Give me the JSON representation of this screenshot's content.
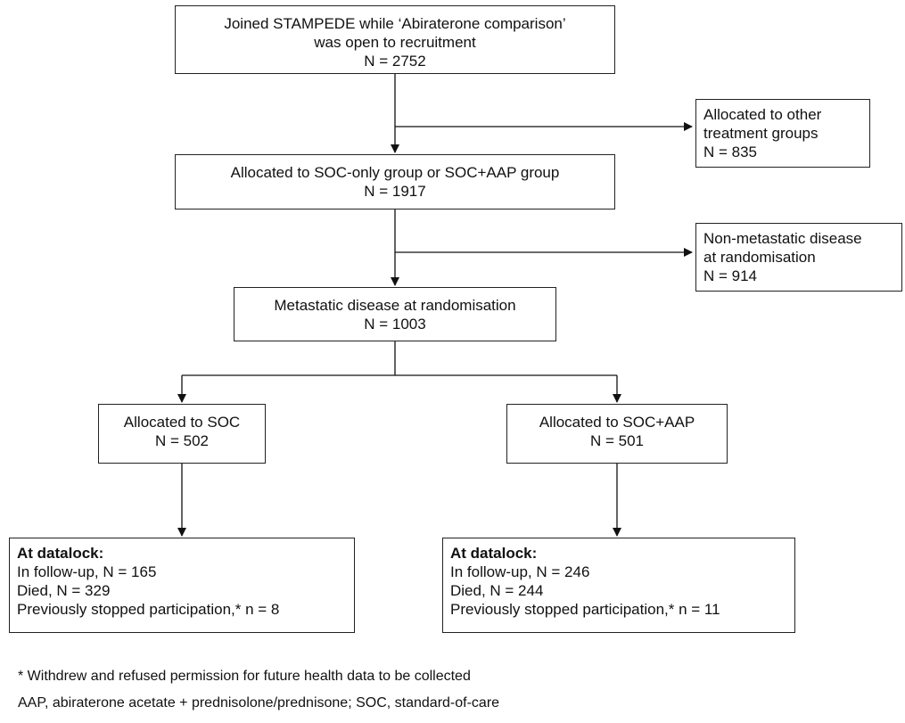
{
  "boxes": {
    "joined": {
      "lines": [
        "Joined STAMPEDE while ‘Abiraterone comparison’",
        "was open to recruitment",
        "N = 2752"
      ]
    },
    "other_groups": {
      "lines": [
        "Allocated to other",
        "treatment groups",
        "N = 835"
      ]
    },
    "soc_or_aap": {
      "lines": [
        "Allocated to SOC-only group or SOC+AAP group",
        "N = 1917"
      ]
    },
    "non_metastatic": {
      "lines": [
        "Non-metastatic disease",
        "at randomisation",
        "N = 914"
      ]
    },
    "metastatic": {
      "lines": [
        "Metastatic disease at randomisation",
        "N = 1003"
      ]
    },
    "alloc_soc": {
      "lines": [
        "Allocated to SOC",
        "N = 502"
      ]
    },
    "alloc_soc_aap": {
      "lines": [
        "Allocated to SOC+AAP",
        "N = 501"
      ]
    },
    "datalock_soc": {
      "heading": "At datalock:",
      "lines": [
        "In follow-up, N = 165",
        "Died, N = 329",
        "Previously stopped participation,* n = 8"
      ]
    },
    "datalock_soc_aap": {
      "heading": "At datalock:",
      "lines": [
        "In follow-up, N = 246",
        "Died, N = 244",
        "Previously stopped participation,* n = 11"
      ]
    }
  },
  "footnotes": {
    "asterisk": "* Withdrew and refused permission for future health data to be collected",
    "abbreviations": "AAP,  abiraterone acetate + prednisolone/prednisone; SOC,  standard-of-care"
  }
}
